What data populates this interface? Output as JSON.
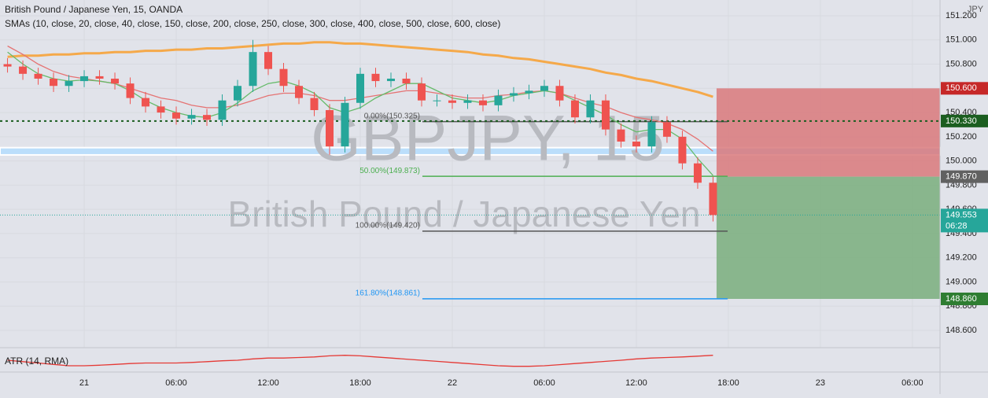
{
  "chart_data": {
    "type": "candlestick",
    "title": "British Pound / Japanese Yen, 15, OANDA",
    "indicator": "SMAs (10, close, 20, close, 40, close, 150, close, 200, close, 250, close, 300, close, 400, close, 500, close, 600, close)",
    "watermark": "GBPJPY, 15",
    "watermark_sub": "British Pound / Japanese Yen",
    "currency": "JPY",
    "up_color": "#26a69a",
    "down_color": "#ef5350",
    "xlim": [
      -5.49,
      55.8
    ],
    "ylim": [
      148.457,
      151.33
    ],
    "xticks": [
      {
        "value": 0,
        "label": "21"
      },
      {
        "value": 6,
        "label": "06:00"
      },
      {
        "value": 12,
        "label": "12:00"
      },
      {
        "value": 18,
        "label": "18:00"
      },
      {
        "value": 24,
        "label": "22"
      },
      {
        "value": 30,
        "label": "06:00"
      },
      {
        "value": 36,
        "label": "12:00"
      },
      {
        "value": 42,
        "label": "18:00"
      },
      {
        "value": 48,
        "label": "23"
      },
      {
        "value": 54,
        "label": "06:00"
      }
    ],
    "yticks": [
      {
        "value": 148.6,
        "label": "148.600"
      },
      {
        "value": 148.8,
        "label": "148.800"
      },
      {
        "value": 149,
        "label": "149.000"
      },
      {
        "value": 149.2,
        "label": "149.200"
      },
      {
        "value": 149.4,
        "label": "149.400"
      },
      {
        "value": 149.6,
        "label": "149.600"
      },
      {
        "value": 149.8,
        "label": "149.800"
      },
      {
        "value": 150,
        "label": "150.000"
      },
      {
        "value": 150.2,
        "label": "150.200"
      },
      {
        "value": 150.4,
        "label": "150.400"
      },
      {
        "value": 150.6,
        "label": "150.600"
      },
      {
        "value": 150.8,
        "label": "150.800"
      },
      {
        "value": 151,
        "label": "151.000"
      },
      {
        "value": 151.2,
        "label": "151.200"
      }
    ],
    "x": [
      -5,
      -4,
      -3,
      -2,
      -1,
      0,
      1,
      2,
      3,
      4,
      5,
      6,
      7,
      8,
      9,
      10,
      11,
      12,
      13,
      14,
      15,
      16,
      17,
      18,
      19,
      20,
      21,
      22,
      23,
      24,
      25,
      26,
      27,
      28,
      29,
      30,
      31,
      32,
      33,
      34,
      35,
      36,
      37,
      38,
      39,
      40,
      41
    ],
    "open": [
      150.8,
      150.78,
      150.72,
      150.68,
      150.62,
      150.66,
      150.7,
      150.68,
      150.64,
      150.52,
      150.45,
      150.4,
      150.35,
      150.38,
      150.34,
      150.5,
      150.62,
      150.9,
      150.76,
      150.62,
      150.52,
      150.42,
      150.12,
      150.48,
      150.72,
      150.66,
      150.68,
      150.64,
      150.5,
      150.5,
      150.48,
      150.5,
      150.46,
      150.54,
      150.56,
      150.58,
      150.62,
      150.5,
      150.36,
      150.5,
      150.26,
      150.16,
      150.12,
      150.32,
      150.2,
      149.98,
      149.82
    ],
    "high": [
      150.85,
      150.83,
      150.77,
      150.73,
      150.71,
      150.75,
      150.75,
      150.73,
      150.69,
      150.57,
      150.5,
      150.45,
      150.43,
      150.43,
      150.55,
      150.67,
      151.0,
      150.95,
      150.81,
      150.67,
      150.57,
      150.47,
      150.53,
      150.77,
      150.77,
      150.73,
      150.73,
      150.69,
      150.55,
      150.55,
      150.55,
      150.55,
      150.59,
      150.61,
      150.63,
      150.67,
      150.67,
      150.55,
      150.55,
      150.55,
      150.31,
      150.21,
      150.37,
      150.37,
      150.25,
      150.03,
      149.87
    ],
    "low": [
      150.73,
      150.67,
      150.63,
      150.57,
      150.57,
      150.61,
      150.63,
      150.59,
      150.47,
      150.4,
      150.35,
      150.3,
      150.3,
      150.29,
      150.29,
      150.45,
      150.57,
      150.71,
      150.57,
      150.47,
      150.37,
      150.05,
      150.07,
      150.43,
      150.61,
      150.61,
      150.59,
      150.45,
      150.45,
      150.43,
      150.43,
      150.41,
      150.41,
      150.49,
      150.51,
      150.53,
      150.45,
      150.31,
      150.31,
      150.21,
      150.11,
      150.07,
      150.07,
      150.15,
      149.93,
      149.77,
      149.5
    ],
    "close": [
      150.78,
      150.72,
      150.68,
      150.62,
      150.66,
      150.7,
      150.68,
      150.64,
      150.52,
      150.45,
      150.4,
      150.35,
      150.38,
      150.34,
      150.5,
      150.62,
      150.9,
      150.76,
      150.62,
      150.52,
      150.42,
      150.12,
      150.48,
      150.72,
      150.66,
      150.68,
      150.64,
      150.5,
      150.5,
      150.48,
      150.5,
      150.46,
      150.54,
      150.56,
      150.58,
      150.62,
      150.5,
      150.36,
      150.5,
      150.26,
      150.16,
      150.12,
      150.32,
      150.2,
      149.98,
      149.82,
      149.553
    ],
    "series": [
      {
        "color": "#f5a94a",
        "values": [
          150.86,
          150.87,
          150.87,
          150.88,
          150.88,
          150.89,
          150.89,
          150.9,
          150.9,
          150.91,
          150.91,
          150.92,
          150.92,
          150.93,
          150.93,
          150.94,
          150.95,
          150.96,
          150.97,
          150.97,
          150.98,
          150.98,
          150.97,
          150.97,
          150.96,
          150.95,
          150.94,
          150.93,
          150.92,
          150.91,
          150.9,
          150.88,
          150.87,
          150.85,
          150.84,
          150.82,
          150.8,
          150.78,
          150.76,
          150.73,
          150.71,
          150.68,
          150.66,
          150.63,
          150.6,
          150.57,
          150.53
        ]
      },
      {
        "color": "#e57373",
        "values": [
          150.95,
          150.88,
          150.8,
          150.74,
          150.7,
          150.68,
          150.66,
          150.64,
          150.6,
          150.56,
          150.52,
          150.5,
          150.46,
          150.44,
          150.44,
          150.46,
          150.5,
          150.54,
          150.56,
          150.56,
          150.54,
          150.5,
          150.5,
          150.52,
          150.54,
          150.56,
          150.58,
          150.58,
          150.56,
          150.54,
          150.52,
          150.52,
          150.54,
          150.55,
          150.57,
          150.58,
          150.56,
          150.52,
          150.48,
          150.45,
          150.4,
          150.36,
          150.34,
          150.31,
          150.26,
          150.18,
          150.08
        ]
      },
      {
        "color": "#66bb6a",
        "values": [
          150.9,
          150.8,
          150.72,
          150.68,
          150.66,
          150.67,
          150.66,
          150.64,
          150.58,
          150.5,
          150.44,
          150.4,
          150.37,
          150.36,
          150.4,
          150.48,
          150.58,
          150.64,
          150.66,
          150.62,
          150.56,
          150.44,
          150.4,
          150.44,
          150.52,
          150.58,
          150.64,
          150.64,
          150.58,
          150.52,
          150.5,
          150.48,
          150.5,
          150.54,
          150.56,
          150.58,
          150.56,
          150.5,
          150.44,
          150.38,
          150.3,
          150.24,
          150.26,
          150.26,
          150.18,
          150.02,
          149.88
        ]
      }
    ],
    "zone": [
      150.05,
      150.11
    ],
    "fib_x": [
      22.05,
      41.95
    ],
    "fib": [
      {
        "label": "0.00%(150.325)",
        "value": 150.325,
        "color": "#555555"
      },
      {
        "label": "50.00%(149.873)",
        "value": 149.873,
        "color": "#4caf50"
      },
      {
        "label": "100.00%(149.420)",
        "value": 149.42,
        "color": "#555555"
      },
      {
        "label": "161.80%(148.861)",
        "value": 148.861,
        "color": "#2196f3"
      }
    ],
    "position": {
      "x_start": 41.23,
      "stop": 150.6,
      "entry": 149.87,
      "target": 148.86
    },
    "price_labels": [
      {
        "label": "150.600",
        "value": 150.6,
        "color": "#c62828"
      },
      {
        "label": "150.330",
        "value": 150.33,
        "color": "#1b5e20"
      },
      {
        "label": "149.870",
        "value": 149.87,
        "color": "#616161"
      },
      {
        "label": "149.553",
        "value": 149.553,
        "color": "#26a69a"
      },
      {
        "label": "148.860",
        "value": 148.86,
        "color": "#2e7d32"
      }
    ],
    "countdown": "06:28",
    "atr": {
      "label": "ATR (14, RMA)",
      "color": "#e53935",
      "ylim": [
        0.1,
        0.18
      ],
      "values": [
        0.14,
        0.135,
        0.13,
        0.125,
        0.12,
        0.12,
        0.122,
        0.125,
        0.128,
        0.13,
        0.13,
        0.13,
        0.132,
        0.135,
        0.138,
        0.14,
        0.145,
        0.148,
        0.148,
        0.15,
        0.152,
        0.156,
        0.158,
        0.156,
        0.152,
        0.148,
        0.144,
        0.14,
        0.136,
        0.132,
        0.128,
        0.124,
        0.12,
        0.118,
        0.118,
        0.12,
        0.124,
        0.128,
        0.132,
        0.136,
        0.14,
        0.145,
        0.148,
        0.15,
        0.152,
        0.155,
        0.158
      ]
    }
  }
}
